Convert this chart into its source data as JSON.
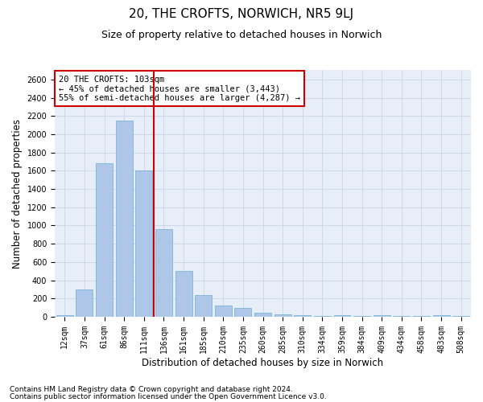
{
  "title": "20, THE CROFTS, NORWICH, NR5 9LJ",
  "subtitle": "Size of property relative to detached houses in Norwich",
  "xlabel": "Distribution of detached houses by size in Norwich",
  "ylabel": "Number of detached properties",
  "footnote1": "Contains HM Land Registry data © Crown copyright and database right 2024.",
  "footnote2": "Contains public sector information licensed under the Open Government Licence v3.0.",
  "annotation_line1": "20 THE CROFTS: 103sqm",
  "annotation_line2": "← 45% of detached houses are smaller (3,443)",
  "annotation_line3": "55% of semi-detached houses are larger (4,287) →",
  "bar_labels": [
    "12sqm",
    "37sqm",
    "61sqm",
    "86sqm",
    "111sqm",
    "136sqm",
    "161sqm",
    "185sqm",
    "210sqm",
    "235sqm",
    "260sqm",
    "285sqm",
    "310sqm",
    "334sqm",
    "359sqm",
    "384sqm",
    "409sqm",
    "434sqm",
    "458sqm",
    "483sqm",
    "508sqm"
  ],
  "bar_values": [
    20,
    300,
    1680,
    2150,
    1600,
    960,
    500,
    240,
    120,
    100,
    45,
    30,
    15,
    10,
    20,
    5,
    15,
    5,
    5,
    20,
    5
  ],
  "bar_color": "#aec6e8",
  "bar_edgecolor": "#6aaed6",
  "vline_color": "#cc0000",
  "vline_x": 4.5,
  "ylim": [
    0,
    2700
  ],
  "yticks": [
    0,
    200,
    400,
    600,
    800,
    1000,
    1200,
    1400,
    1600,
    1800,
    2000,
    2200,
    2400,
    2600
  ],
  "grid_color": "#c8d4e8",
  "bg_color": "#e8eef8",
  "annotation_box_color": "#cc0000",
  "title_fontsize": 11,
  "subtitle_fontsize": 9,
  "axis_label_fontsize": 8.5,
  "tick_fontsize": 7,
  "annotation_fontsize": 7.5,
  "footnote_fontsize": 6.5
}
